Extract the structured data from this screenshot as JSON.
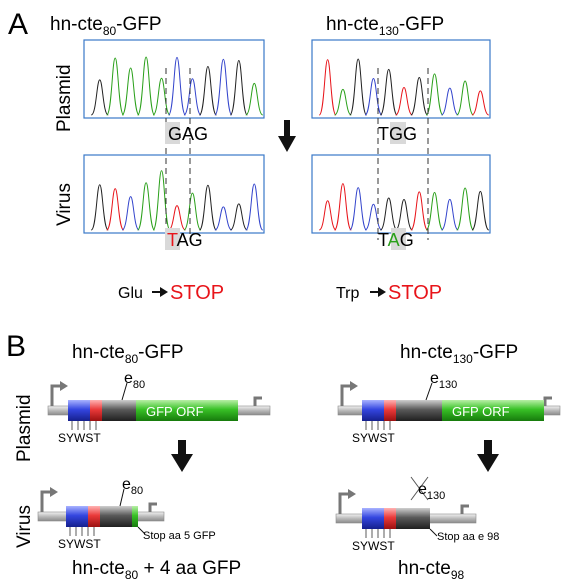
{
  "panel_a": {
    "label": "A",
    "row_plasmid": "Plasmid",
    "row_virus": "Virus",
    "left": {
      "title_prefix": "hn-cte",
      "title_sub": "80",
      "title_suffix": "-GFP",
      "plasmid_codon": "GAG",
      "virus_codon_mut": "T",
      "virus_codon_rest": "AG",
      "change_from": "Glu",
      "change_to": "STOP"
    },
    "right": {
      "title_prefix": "hn-cte",
      "title_sub": "130",
      "title_suffix": "-GFP",
      "plasmid_codon": "TGG",
      "virus_codon_pre": "T",
      "virus_codon_mut": "A",
      "virus_codon_post": "G",
      "change_from": "Trp",
      "change_to": "STOP"
    },
    "colors": {
      "stop": "#e8141a",
      "mut_T": "#e8141a",
      "mut_A": "#2aa01a",
      "frame": "#3a79c8"
    }
  },
  "panel_b": {
    "label": "B",
    "row_plasmid": "Plasmid",
    "row_virus": "Virus",
    "left": {
      "title_prefix": "hn-cte",
      "title_sub": "80",
      "title_suffix": "-GFP",
      "ectodomain_prefix": "e",
      "ectodomain_sub": "80",
      "gfp_label": "GFP ORF",
      "motif": "SYWST",
      "virus_e_prefix": "e",
      "virus_e_sub": "80",
      "stop_label": "Stop aa 5 GFP",
      "result_prefix": "hn-cte",
      "result_sub": "80",
      "result_suffix": " + 4 aa GFP"
    },
    "right": {
      "title_prefix": "hn-cte",
      "title_sub": "130",
      "title_suffix": "-GFP",
      "ectodomain_prefix": "e",
      "ectodomain_sub": "130",
      "gfp_label": "GFP ORF",
      "motif": "SYWST",
      "virus_e_prefix": "e",
      "virus_e_sub": "130",
      "stop_label": "Stop aa e 98",
      "result_prefix": "hn-cte",
      "result_sub": "98",
      "result_suffix": ""
    },
    "colors": {
      "gfp": "#33bb22",
      "blue": "#3a4fd6",
      "red": "#e8353a",
      "gray": "#6c6c6c"
    }
  }
}
